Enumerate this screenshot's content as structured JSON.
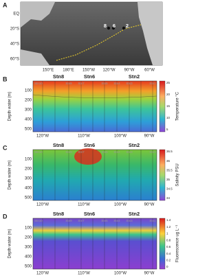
{
  "map": {
    "label": "A",
    "lat_labels": [
      "EQ",
      "20°S",
      "40°S",
      "60°S"
    ],
    "lon_labels": [
      "150°E",
      "180°E",
      "150°W",
      "120°W",
      "90°W",
      "60°W"
    ],
    "stations": [
      "8",
      "6",
      "2"
    ]
  },
  "sections": [
    {
      "label": "B",
      "ylabel": "Depth water (m)",
      "stations": [
        "Stn8",
        "Stn6",
        "Stn2"
      ],
      "faint_stations": [
        "Stn10",
        "Stn9",
        "Stn7",
        "Stn5",
        "Stn4",
        "Stn3",
        "Stn1"
      ],
      "yticks": [
        "100",
        "200",
        "300",
        "400",
        "500"
      ],
      "xticks": [
        "120°W",
        "110°W",
        "100°W",
        "90°W"
      ],
      "colorbar": {
        "label": "Temperature °C",
        "ticks": [
          "25",
          "20",
          "15",
          "10",
          "5"
        ]
      }
    },
    {
      "label": "C",
      "ylabel": "Depth water (m)",
      "stations": [
        "Stn8",
        "Stn6",
        "Stn2"
      ],
      "faint_stations": [
        "Stn10",
        "Stn9",
        "Stn7",
        "Stn5",
        "Stn4",
        "Stn3",
        "Stn1"
      ],
      "yticks": [
        "100",
        "200",
        "300",
        "400",
        "500"
      ],
      "xticks": [
        "120°W",
        "110°W",
        "100°W",
        "90°W"
      ],
      "colorbar": {
        "label": "Salinity PSU",
        "ticks": [
          "36.5",
          "36",
          "35.5",
          "35",
          "34.5",
          "34"
        ]
      }
    },
    {
      "label": "D",
      "ylabel": "Depth water (m)",
      "stations": [
        "Stn8",
        "Stn6",
        "Stn2"
      ],
      "faint_stations": [
        "Stn10",
        "Stn9",
        "Stn7",
        "Stn5",
        "Stn4",
        "Stn3",
        "Stn1"
      ],
      "yticks": [
        "100",
        "200",
        "300",
        "400",
        "500"
      ],
      "xticks": [
        "120°W",
        "110°W",
        "100°W",
        "90°W"
      ],
      "colorbar": {
        "label": "Fluorescence ug L⁻¹",
        "ticks": [
          "1.4",
          "1.2",
          "1",
          "0.8",
          "0.6",
          "0.4",
          "0.2",
          "0"
        ]
      }
    }
  ]
}
